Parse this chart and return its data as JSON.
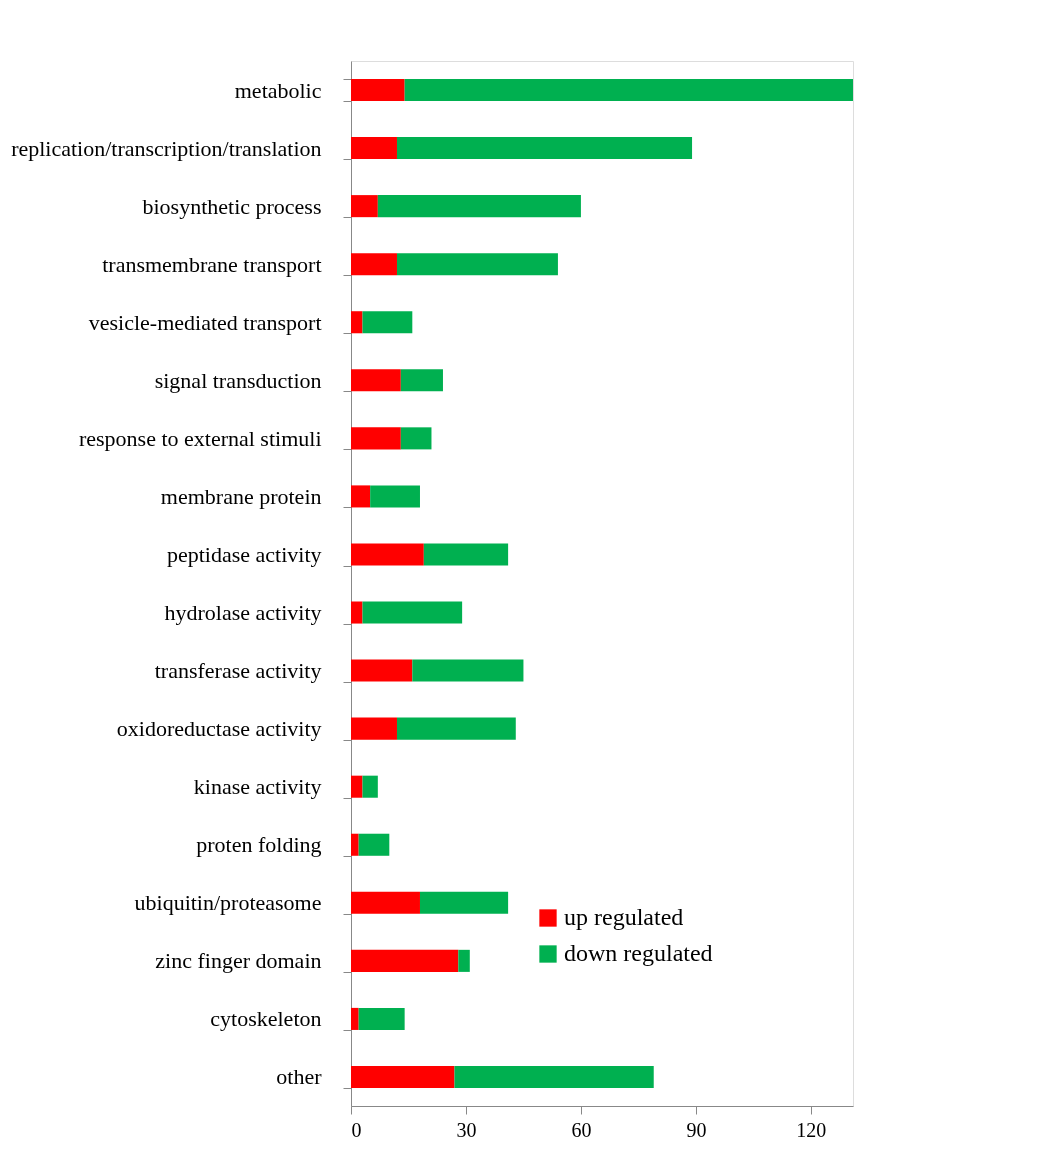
{
  "chart_data": {
    "type": "bar",
    "orientation": "horizontal",
    "stacked": true,
    "categories": [
      "metabolic",
      "replication/transcription/translation",
      "biosynthetic process",
      "transmembrane transport",
      "vesicle-mediated transport",
      "signal transduction",
      "response to external stimuli",
      "membrane protein",
      "peptidase activity",
      "hydrolase activity",
      "transferase activity",
      "oxidoreductase activity",
      "kinase activity",
      "proten folding",
      "ubiquitin/proteasome",
      "zinc finger domain",
      "cytoskeleton",
      "other"
    ],
    "series": [
      {
        "name": "up regulated",
        "color": "#ff0000",
        "values": [
          14,
          12,
          7,
          12,
          3,
          13,
          13,
          5,
          19,
          3,
          16,
          12,
          3,
          2,
          18,
          28,
          2,
          27
        ]
      },
      {
        "name": "down regulated",
        "color": "#00b050",
        "values": [
          117,
          77,
          53,
          42,
          13,
          11,
          8,
          13,
          22,
          26,
          29,
          31,
          4,
          8,
          23,
          3,
          12,
          52
        ]
      }
    ],
    "xlim": [
      0,
      131
    ],
    "xticks": [
      0,
      30,
      60,
      90,
      120
    ],
    "grid": false,
    "legend": "bottom right"
  }
}
